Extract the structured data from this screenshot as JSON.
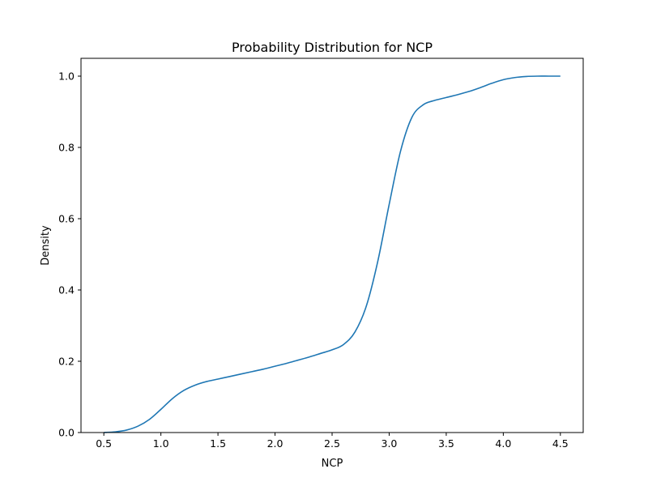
{
  "chart_data": {
    "type": "line",
    "title": "Probability Distribution for NCP",
    "xlabel": "NCP",
    "ylabel": "Density",
    "xlim": [
      0.3,
      4.7
    ],
    "ylim": [
      0.0,
      1.05
    ],
    "x_ticks": [
      0.5,
      1.0,
      1.5,
      2.0,
      2.5,
      3.0,
      3.5,
      4.0,
      4.5
    ],
    "x_tick_labels": [
      "0.5",
      "1.0",
      "1.5",
      "2.0",
      "2.5",
      "3.0",
      "3.5",
      "4.0",
      "4.5"
    ],
    "y_ticks": [
      0.0,
      0.2,
      0.4,
      0.6,
      0.8,
      1.0
    ],
    "y_tick_labels": [
      "0.0",
      "0.2",
      "0.4",
      "0.6",
      "0.8",
      "1.0"
    ],
    "grid": false,
    "series": [
      {
        "color": "#1f77b4",
        "x": [
          0.5,
          0.6,
          0.7,
          0.8,
          0.9,
          1.0,
          1.1,
          1.2,
          1.3,
          1.4,
          1.5,
          1.6,
          1.7,
          1.8,
          1.9,
          2.0,
          2.1,
          2.2,
          2.3,
          2.4,
          2.5,
          2.6,
          2.7,
          2.8,
          2.9,
          3.0,
          3.1,
          3.2,
          3.3,
          3.4,
          3.5,
          3.6,
          3.7,
          3.8,
          3.9,
          4.0,
          4.1,
          4.2,
          4.3,
          4.4,
          4.5
        ],
        "y": [
          0.0,
          0.002,
          0.007,
          0.018,
          0.037,
          0.065,
          0.095,
          0.118,
          0.133,
          0.143,
          0.15,
          0.157,
          0.164,
          0.171,
          0.178,
          0.186,
          0.194,
          0.203,
          0.212,
          0.222,
          0.232,
          0.247,
          0.282,
          0.355,
          0.48,
          0.64,
          0.79,
          0.885,
          0.92,
          0.932,
          0.94,
          0.948,
          0.957,
          0.968,
          0.98,
          0.99,
          0.996,
          0.999,
          1.0,
          1.0,
          1.0
        ]
      }
    ]
  }
}
